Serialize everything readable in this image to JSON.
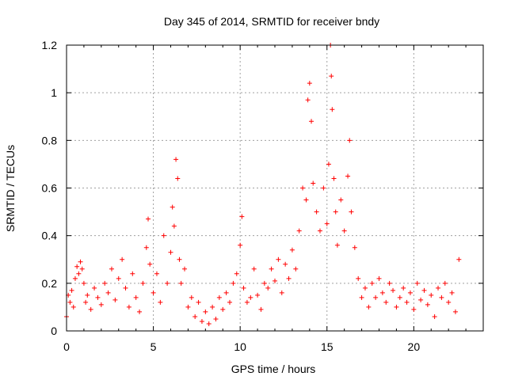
{
  "chart_data": {
    "type": "scatter",
    "title": "Day 345 of 2014, SRMTID for receiver bndy",
    "xlabel": "GPS time / hours",
    "ylabel": "SRMTID / TECUs",
    "xlim": [
      0,
      24
    ],
    "ylim": [
      0,
      1.2
    ],
    "xticks": [
      0,
      5,
      10,
      15,
      20
    ],
    "xtick_labels": [
      "0",
      "5",
      "10",
      "15",
      "20"
    ],
    "yticks": [
      0,
      0.2,
      0.4,
      0.6,
      0.8,
      1.0,
      1.2
    ],
    "ytick_labels": [
      "0",
      "0.2",
      "0.4",
      "0.6",
      "0.8",
      "1",
      "1.2"
    ],
    "grid": true,
    "marker": "+",
    "color": "#ff0000",
    "series": [
      {
        "name": "SRMTID",
        "x": [
          0.0,
          0.1,
          0.2,
          0.3,
          0.4,
          0.5,
          0.6,
          0.7,
          0.8,
          0.9,
          1.0,
          1.1,
          1.2,
          1.4,
          1.6,
          1.8,
          2.0,
          2.2,
          2.4,
          2.6,
          2.8,
          3.0,
          3.2,
          3.4,
          3.6,
          3.8,
          4.0,
          4.2,
          4.4,
          4.6,
          4.7,
          4.8,
          5.0,
          5.2,
          5.4,
          5.6,
          5.8,
          6.0,
          6.1,
          6.2,
          6.3,
          6.4,
          6.5,
          6.6,
          6.8,
          7.0,
          7.2,
          7.4,
          7.6,
          7.8,
          8.0,
          8.2,
          8.4,
          8.6,
          8.8,
          9.0,
          9.2,
          9.4,
          9.6,
          9.8,
          10.0,
          10.1,
          10.2,
          10.4,
          10.6,
          10.8,
          11.0,
          11.2,
          11.4,
          11.6,
          11.8,
          12.0,
          12.2,
          12.4,
          12.6,
          12.8,
          13.0,
          13.2,
          13.4,
          13.6,
          13.8,
          13.9,
          14.0,
          14.1,
          14.2,
          14.4,
          14.6,
          14.8,
          15.0,
          15.1,
          15.2,
          15.25,
          15.3,
          15.4,
          15.5,
          15.6,
          15.8,
          16.0,
          16.2,
          16.3,
          16.4,
          16.6,
          16.8,
          17.0,
          17.2,
          17.4,
          17.6,
          17.8,
          18.0,
          18.2,
          18.4,
          18.6,
          18.8,
          19.0,
          19.2,
          19.4,
          19.6,
          19.8,
          20.0,
          20.2,
          20.4,
          20.6,
          20.8,
          21.0,
          21.2,
          21.4,
          21.6,
          21.8,
          22.0,
          22.2,
          22.4,
          22.6
        ],
        "y": [
          0.06,
          0.15,
          0.12,
          0.17,
          0.1,
          0.22,
          0.27,
          0.24,
          0.29,
          0.26,
          0.2,
          0.12,
          0.15,
          0.09,
          0.18,
          0.14,
          0.11,
          0.2,
          0.16,
          0.26,
          0.13,
          0.22,
          0.3,
          0.18,
          0.1,
          0.24,
          0.14,
          0.08,
          0.2,
          0.35,
          0.47,
          0.28,
          0.16,
          0.24,
          0.12,
          0.4,
          0.2,
          0.33,
          0.52,
          0.44,
          0.72,
          0.64,
          0.3,
          0.2,
          0.26,
          0.1,
          0.14,
          0.06,
          0.12,
          0.04,
          0.08,
          0.03,
          0.1,
          0.05,
          0.14,
          0.09,
          0.16,
          0.12,
          0.2,
          0.24,
          0.36,
          0.48,
          0.18,
          0.12,
          0.14,
          0.26,
          0.15,
          0.09,
          0.2,
          0.18,
          0.26,
          0.21,
          0.3,
          0.16,
          0.28,
          0.22,
          0.34,
          0.26,
          0.42,
          0.6,
          0.55,
          0.97,
          1.04,
          0.88,
          0.62,
          0.5,
          0.42,
          0.6,
          0.45,
          0.7,
          1.2,
          1.07,
          0.93,
          0.64,
          0.5,
          0.36,
          0.55,
          0.42,
          0.65,
          0.8,
          0.5,
          0.35,
          0.22,
          0.14,
          0.18,
          0.1,
          0.2,
          0.14,
          0.22,
          0.16,
          0.12,
          0.2,
          0.17,
          0.1,
          0.14,
          0.18,
          0.12,
          0.16,
          0.09,
          0.2,
          0.13,
          0.17,
          0.11,
          0.15,
          0.06,
          0.18,
          0.14,
          0.2,
          0.12,
          0.16,
          0.08,
          0.3
        ]
      }
    ]
  }
}
